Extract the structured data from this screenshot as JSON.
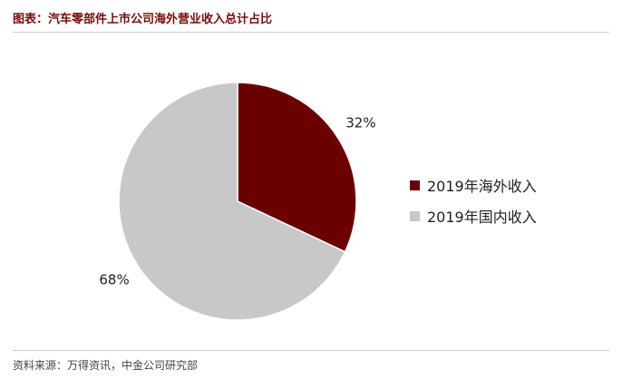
{
  "header": {
    "title": "图表：汽车零部件上市公司海外营业收入总计占比"
  },
  "footer": {
    "source": "资料来源：万得资讯，中金公司研究部"
  },
  "chart_data": {
    "type": "pie",
    "title": "图表：汽车零部件上市公司海外营业收入总计占比",
    "legend": "right",
    "slices": [
      {
        "name": "2019年海外收入",
        "value": 32,
        "label": "32%",
        "color": "#6b0000"
      },
      {
        "name": "2019年国内收入",
        "value": 68,
        "label": "68%",
        "color": "#c8c8c8"
      }
    ]
  }
}
